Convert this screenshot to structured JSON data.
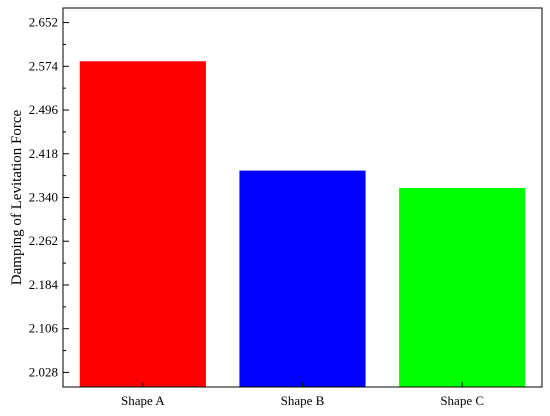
{
  "chart_data": {
    "type": "bar",
    "title": "",
    "xlabel": "",
    "ylabel": "Damping of Levitation Force",
    "categories": [
      "Shape A",
      "Shape B",
      "Shape C"
    ],
    "values": [
      2.583,
      2.388,
      2.357
    ],
    "colors": [
      "#ff0000",
      "#0000ff",
      "#00ff00"
    ],
    "ylim": [
      2.002,
      2.678
    ],
    "yticks": [
      2.028,
      2.106,
      2.184,
      2.262,
      2.34,
      2.418,
      2.496,
      2.574,
      2.652
    ],
    "ytick_labels": [
      "2.028",
      "2.106",
      "2.184",
      "2.262",
      "2.340",
      "2.418",
      "2.496",
      "2.574",
      "2.652"
    ],
    "grid": false,
    "legend": "none"
  }
}
